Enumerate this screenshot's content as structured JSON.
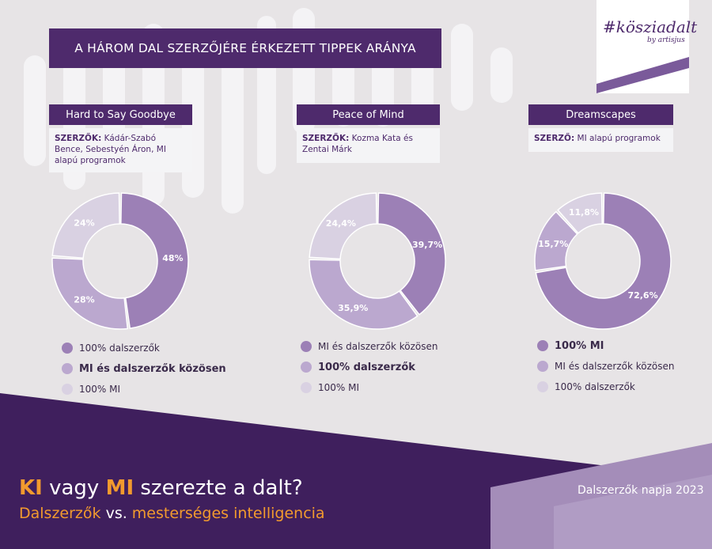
{
  "title": "A HÁROM DAL SZERZŐJÉRE ÉRKEZETT TIPPEK ARÁNYA",
  "logo": {
    "brand": "#kösziadalt",
    "by": "by artisjus"
  },
  "colors": {
    "purple_dark": "#4e2a6c",
    "accent": "#f29a2e",
    "slice_dark": "#9c80b6",
    "slice_mid": "#bba8cf",
    "slice_light": "#d9d1e2"
  },
  "columns": [
    {
      "song": "Hard to Say Goodbye",
      "author_label": "SZERZŐK:",
      "author_text": "Kádár-Szabó Bence, Sebestyén Áron, MI alapú programok"
    },
    {
      "song": "Peace of Mind",
      "author_label": "SZERZŐK:",
      "author_text": "Kozma Kata és Zentai Márk"
    },
    {
      "song": "Dreamscapes",
      "author_label": "SZERZŐ:",
      "author_text": "MI alapú programok"
    }
  ],
  "chart_data": [
    {
      "type": "pie",
      "title": "Hard to Say Goodbye",
      "slices": [
        {
          "label": "100% dalszerzők",
          "value": 48,
          "text": "48%"
        },
        {
          "label": "MI és dalszerzők közösen",
          "value": 28,
          "text": "28%"
        },
        {
          "label": "100% MI",
          "value": 24,
          "text": "24%"
        }
      ],
      "legend": [
        {
          "label": "100% dalszerzők",
          "bold": false
        },
        {
          "label": "MI és dalszerzők közösen",
          "bold": true
        },
        {
          "label": "100% MI",
          "bold": false
        }
      ]
    },
    {
      "type": "pie",
      "title": "Peace of Mind",
      "slices": [
        {
          "label": "MI és dalszerzők közösen",
          "value": 39.7,
          "text": "39,7%"
        },
        {
          "label": "100% dalszerzők",
          "value": 35.9,
          "text": "35,9%"
        },
        {
          "label": "100% MI",
          "value": 24.4,
          "text": "24,4%"
        }
      ],
      "legend": [
        {
          "label": "MI és dalszerzők közösen",
          "bold": false
        },
        {
          "label": "100% dalszerzők",
          "bold": true
        },
        {
          "label": "100% MI",
          "bold": false
        }
      ]
    },
    {
      "type": "pie",
      "title": "Dreamscapes",
      "slices": [
        {
          "label": "100% MI",
          "value": 72.6,
          "text": "72,6%"
        },
        {
          "label": "MI és dalszerzők közösen",
          "value": 15.7,
          "text": "15,7%"
        },
        {
          "label": "100% dalszerzők",
          "value": 11.8,
          "text": "11,8%"
        }
      ],
      "legend": [
        {
          "label": "100% MI",
          "bold": true
        },
        {
          "label": "MI és dalszerzők közösen",
          "bold": false
        },
        {
          "label": "100% dalszerzők",
          "bold": false
        }
      ]
    }
  ],
  "footer": {
    "h1_ki": "KI",
    "h1_vagy": " vagy ",
    "h1_mi": "MI",
    "h1_rest": " szerezte a dalt?",
    "h2_a": "Dalszerzők",
    "h2_vs": " vs. ",
    "h2_b": "mesterséges intelligencia",
    "date": "Dalszerzők napja 2023"
  }
}
